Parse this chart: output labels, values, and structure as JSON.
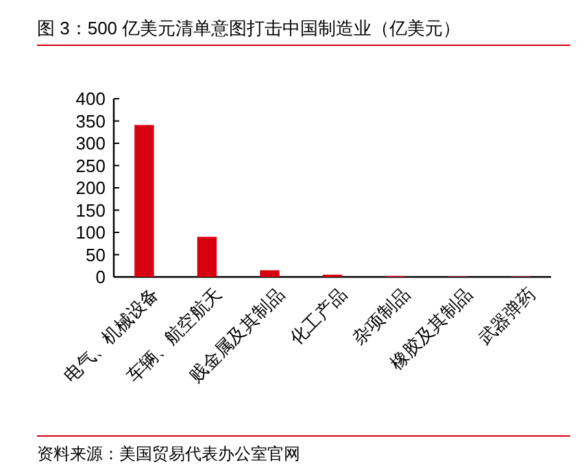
{
  "chart_data": {
    "type": "bar",
    "title": "图 3：500 亿美元清单意图打击中国制造业（亿美元）",
    "categories": [
      "电气、机械设备",
      "车辆、航空航天",
      "贱金属及其制品",
      "化工产品",
      "杂项制品",
      "橡胶及其制品",
      "武器弹药"
    ],
    "values": [
      341,
      90,
      15,
      5,
      2,
      1,
      1
    ],
    "color": "#d7000f",
    "ylim": [
      0,
      400
    ],
    "yticks": [
      0,
      50,
      100,
      150,
      200,
      250,
      300,
      350,
      400
    ],
    "grid": false,
    "annotations": [
      "资料来源：美国贸易代表办公室官网"
    ]
  }
}
